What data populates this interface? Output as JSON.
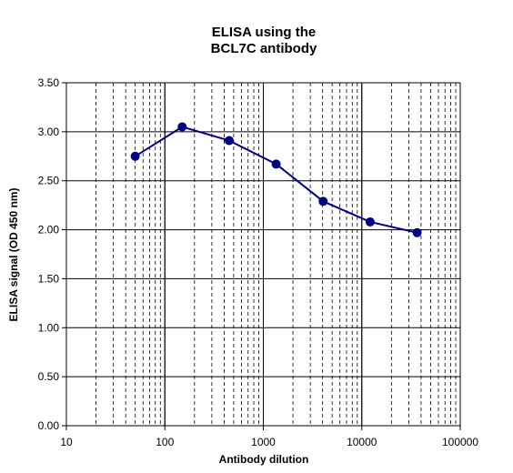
{
  "chart_data": {
    "type": "line",
    "title_lines": [
      "ELISA using the",
      "BCL7C antibody"
    ],
    "xlabel": "Antibody dilution",
    "ylabel": "ELISA signal (OD 450 nm)",
    "x_scale": "log",
    "xlim": [
      10,
      100000
    ],
    "ylim": [
      0,
      3.5
    ],
    "x_ticks": [
      10,
      100,
      1000,
      10000,
      100000
    ],
    "x_tick_labels": [
      "10",
      "100",
      "1000",
      "10000",
      "100000"
    ],
    "y_ticks": [
      0,
      0.5,
      1.0,
      1.5,
      2.0,
      2.5,
      3.0,
      3.5
    ],
    "y_tick_labels": [
      "0.00",
      "0.50",
      "1.00",
      "1.50",
      "2.00",
      "2.50",
      "3.00",
      "3.50"
    ],
    "grid": {
      "horizontal": "solid-major",
      "vertical": "dashed-minor"
    },
    "legend": "none",
    "series": [
      {
        "color": "#000080",
        "x": [
          50,
          150,
          450,
          1350,
          4050,
          12150,
          36450
        ],
        "y": [
          2.75,
          3.05,
          2.91,
          2.67,
          2.29,
          2.08,
          1.97
        ]
      }
    ]
  }
}
